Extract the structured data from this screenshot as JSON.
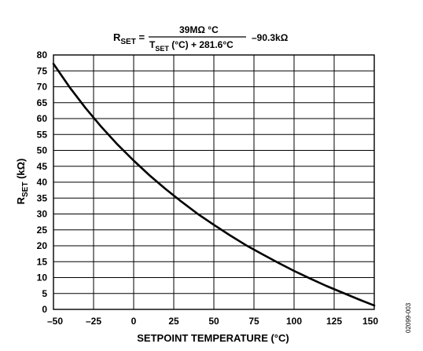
{
  "chart_data": {
    "type": "line",
    "title": {
      "lhs": "R",
      "lhs_sub": "SET",
      "numerator": "39MΩ °C",
      "den_t": "T",
      "den_sub": "SET",
      "den_rest": " (°C) + 281.6°C",
      "offset": "–90.3kΩ"
    },
    "xlabel": "SETPOINT TEMPERATURE (°C)",
    "ylabel": {
      "main": "R",
      "sub": "SET",
      "rest": " (kΩ)"
    },
    "xlim": [
      -50,
      150
    ],
    "ylim": [
      0,
      80
    ],
    "xticks": [
      {
        "value": -50,
        "label": "–50"
      },
      {
        "value": -25,
        "label": "–25"
      },
      {
        "value": 0,
        "label": "0"
      },
      {
        "value": 25,
        "label": "25"
      },
      {
        "value": 50,
        "label": "50"
      },
      {
        "value": 75,
        "label": "75"
      },
      {
        "value": 100,
        "label": "100"
      },
      {
        "value": 125,
        "label": "125"
      },
      {
        "value": 150,
        "label": "150"
      }
    ],
    "yticks": [
      0,
      5,
      10,
      15,
      20,
      25,
      30,
      35,
      40,
      45,
      50,
      55,
      60,
      65,
      70,
      75,
      80
    ],
    "grid": true,
    "series": [
      {
        "x": [
          -50,
          -40,
          -30,
          -20,
          -10,
          0,
          10,
          20,
          30,
          40,
          50,
          60,
          70,
          80,
          90,
          100,
          110,
          120,
          130,
          140,
          150
        ],
        "y": [
          77.2,
          69.9,
          63.3,
          57.3,
          51.8,
          46.8,
          42.1,
          37.8,
          33.8,
          30.0,
          26.6,
          23.3,
          20.2,
          17.4,
          14.7,
          12.1,
          9.7,
          7.4,
          5.3,
          3.2,
          1.2
        ]
      }
    ],
    "line_color": "#000000",
    "figure_id": "02099-003"
  }
}
